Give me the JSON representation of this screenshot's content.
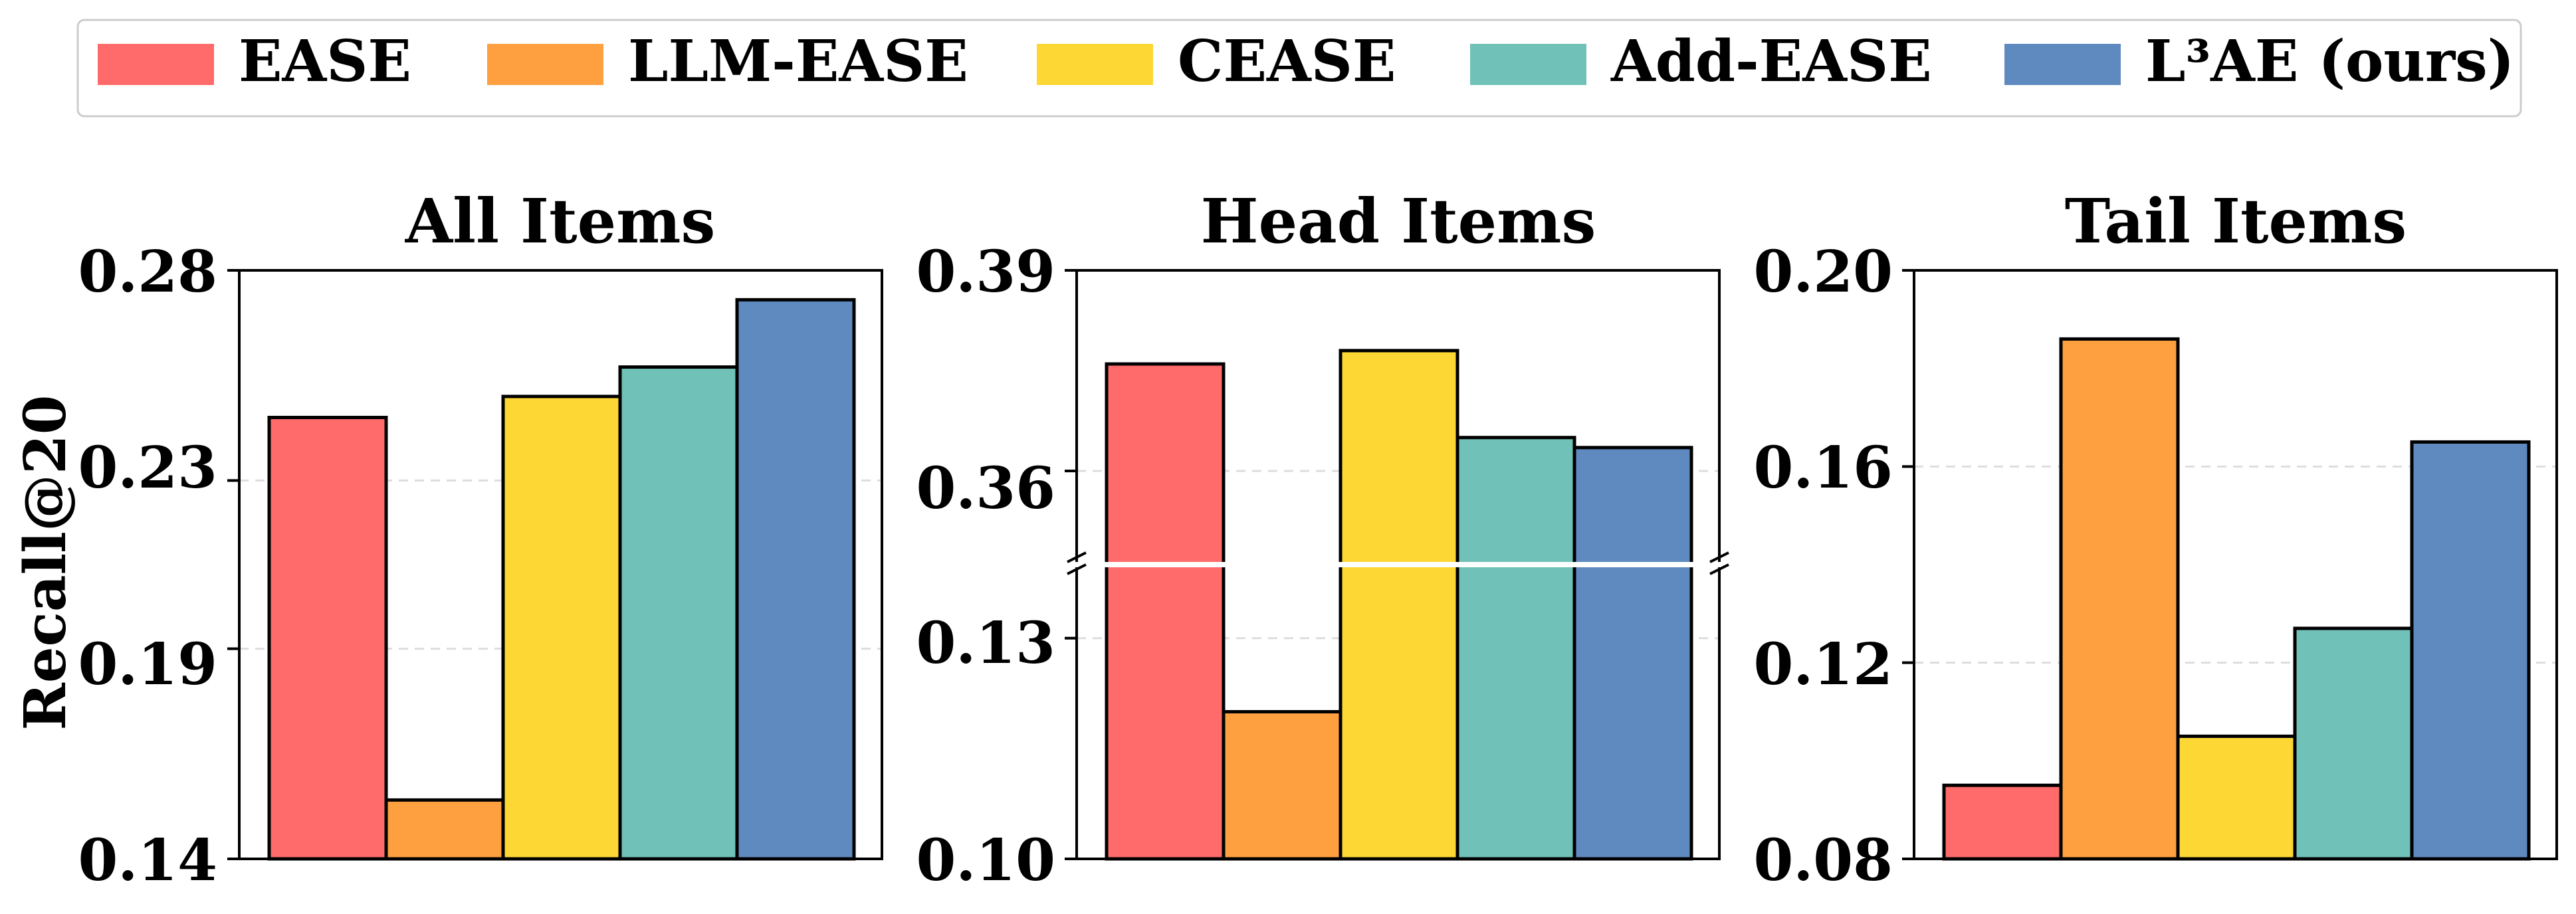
{
  "chart_data": {
    "type": "bar",
    "legend": {
      "placement": "top-center",
      "entries": [
        {
          "name": "EASE",
          "color": "#FF6B6B"
        },
        {
          "name": "LLM-EASE",
          "color": "#FFA040"
        },
        {
          "name": "CEASE",
          "color": "#FDD835"
        },
        {
          "name": "Add-EASE",
          "color": "#70C1B8"
        },
        {
          "name": "L³AE (ours)",
          "color": "#5F8AC0"
        }
      ]
    },
    "ylabel": "Recall@20",
    "grid": "y-dashed",
    "panels": [
      {
        "title": "All Items",
        "ylim": [
          0.14,
          0.28
        ],
        "yticks": [
          "0.14",
          "0.19",
          "0.23",
          "0.28"
        ],
        "values": [
          0.245,
          0.154,
          0.25,
          0.257,
          0.273
        ]
      },
      {
        "title": "Head Items",
        "broken_axis": true,
        "upper_ylim": [
          0.346,
          0.39
        ],
        "lower_ylim": [
          0.1,
          0.14
        ],
        "yticks_upper": [
          "0.36",
          "0.39"
        ],
        "yticks_lower": [
          "0.10",
          "0.13"
        ],
        "values": [
          0.376,
          0.12,
          0.378,
          0.365,
          0.3635
        ]
      },
      {
        "title": "Tail Items",
        "ylim": [
          0.08,
          0.2
        ],
        "yticks": [
          "0.08",
          "0.12",
          "0.16",
          "0.20"
        ],
        "values": [
          0.095,
          0.186,
          0.105,
          0.127,
          0.165
        ]
      }
    ]
  }
}
